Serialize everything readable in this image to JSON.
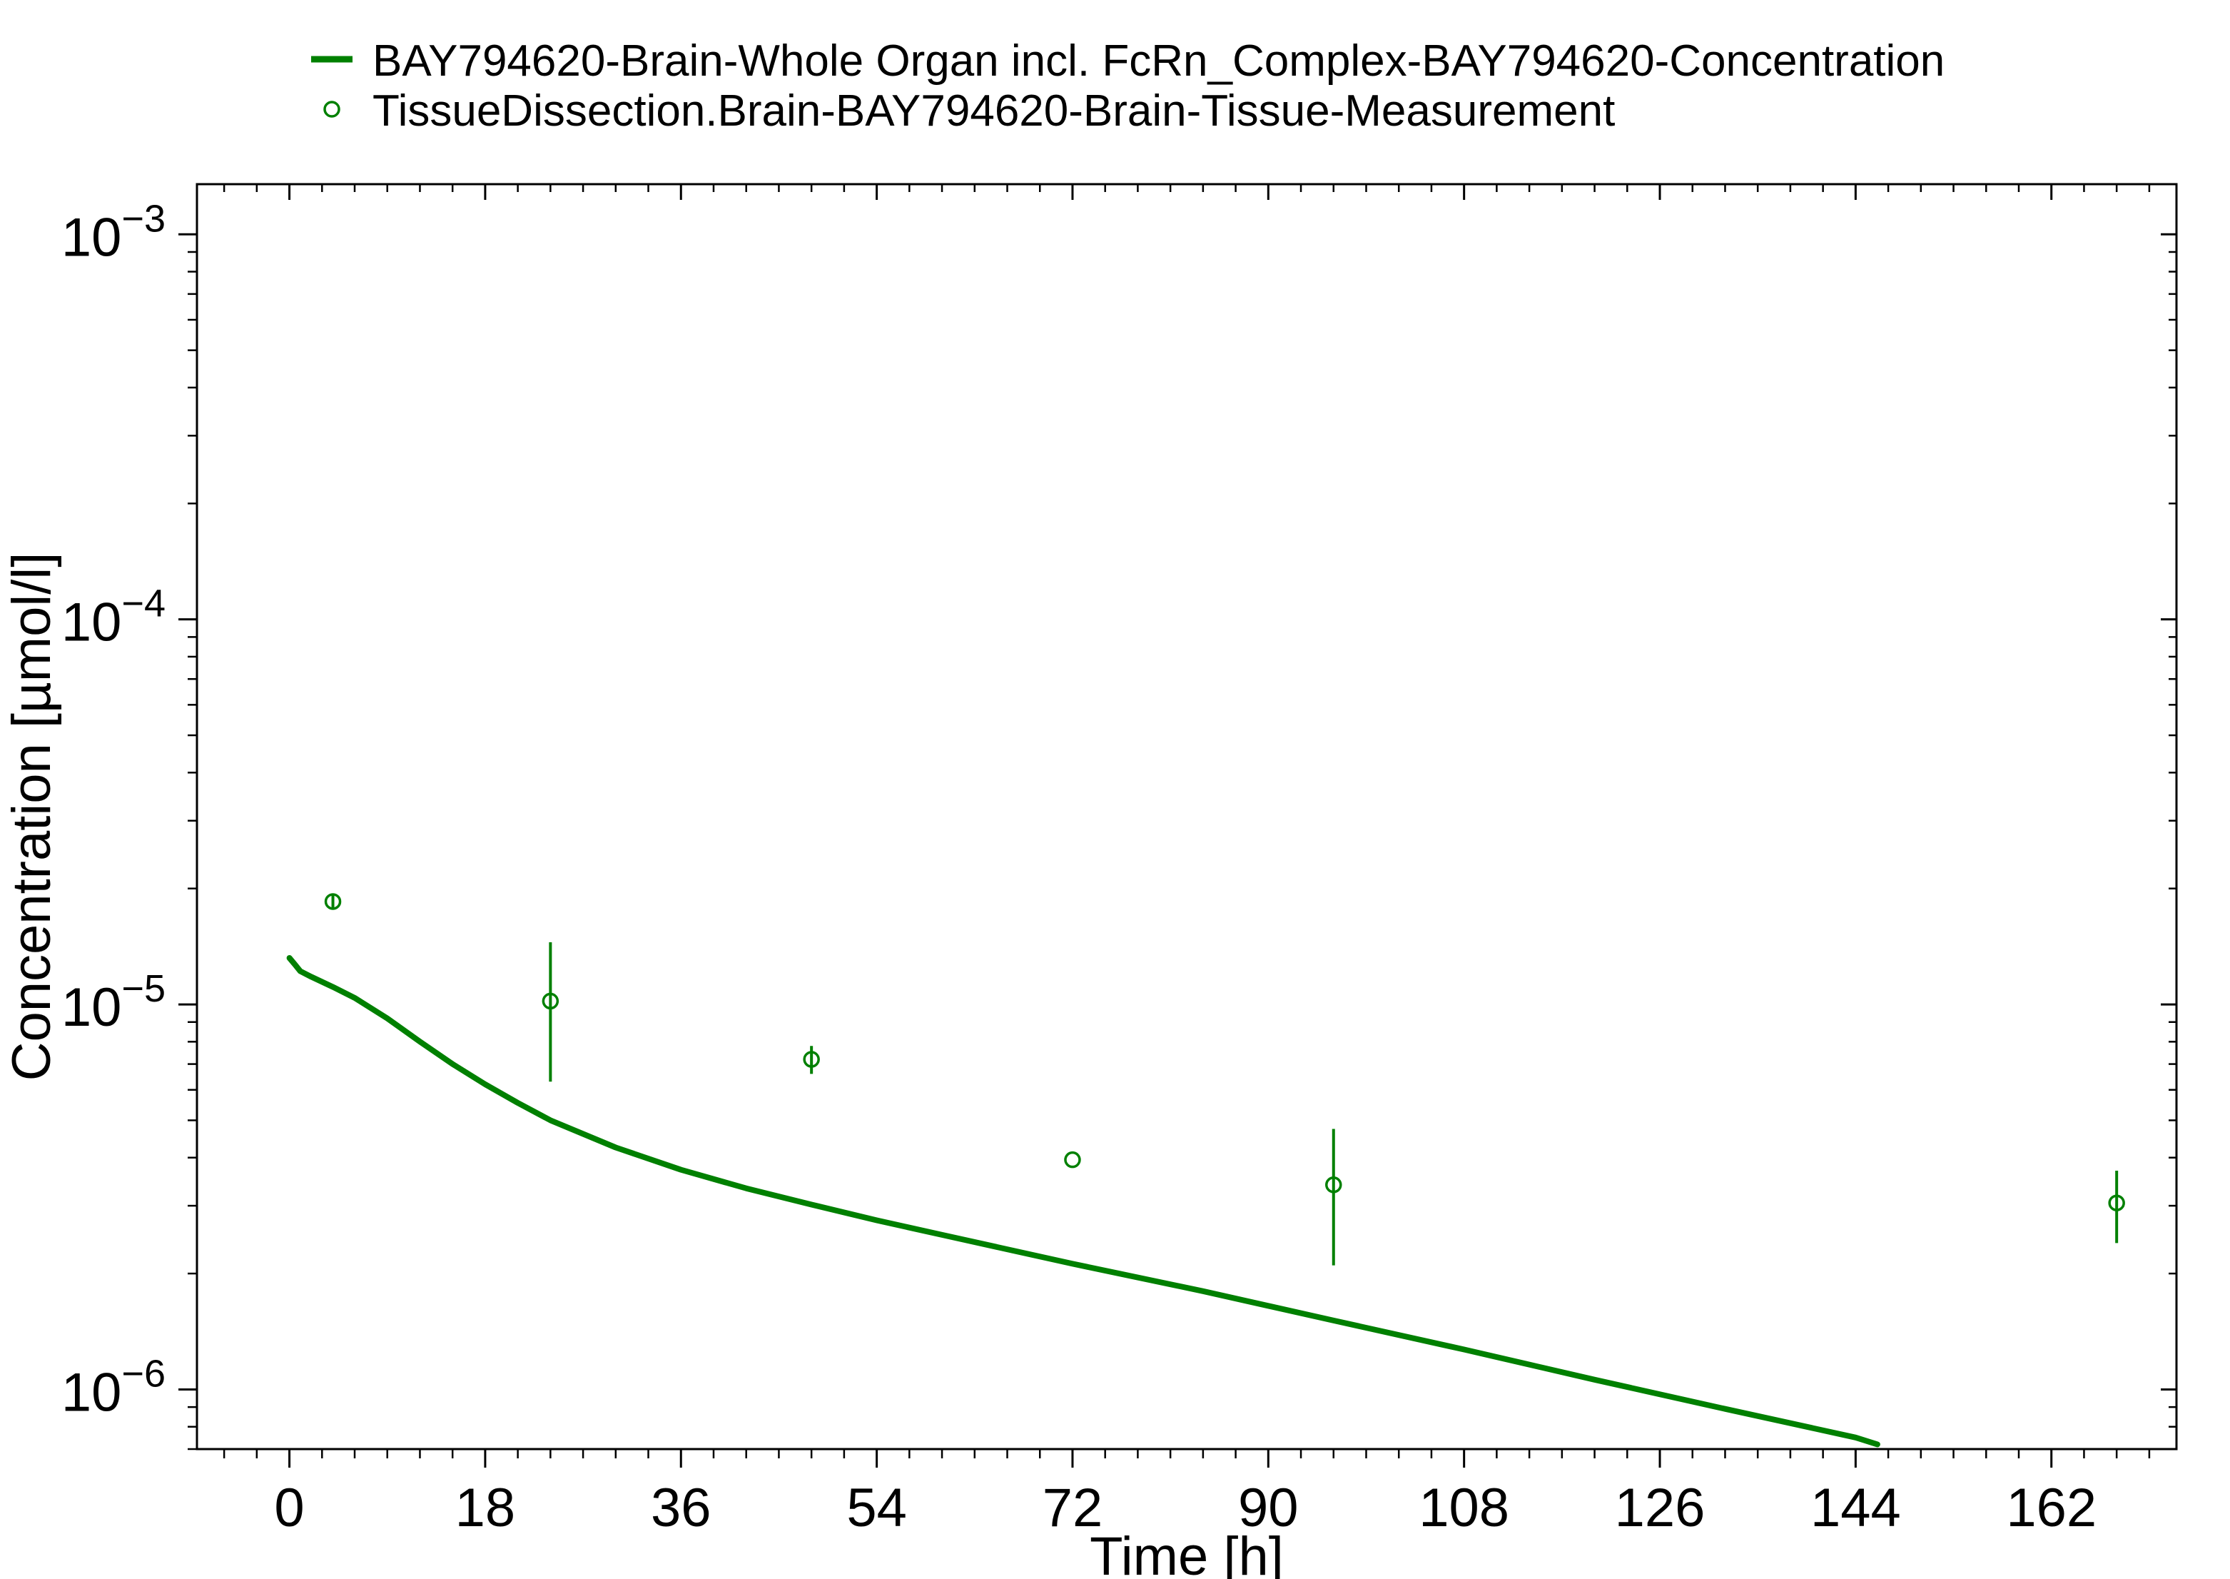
{
  "chart_data": {
    "type": "line",
    "xlabel": "Time [h]",
    "ylabel": "Concentration [µmol/l]",
    "x_ticks": [
      0,
      18,
      36,
      54,
      72,
      90,
      108,
      126,
      144,
      162
    ],
    "xlim": [
      -8.5,
      173.5
    ],
    "ylim": [
      7e-07,
      0.00135
    ],
    "y_scale": "log",
    "y_ticks": [
      {
        "base": "10",
        "exponent": "−6",
        "value": 1e-06
      },
      {
        "base": "10",
        "exponent": "−5",
        "value": 1e-05
      },
      {
        "base": "10",
        "exponent": "−4",
        "value": 0.0001
      },
      {
        "base": "10",
        "exponent": "−3",
        "value": 0.001
      }
    ],
    "grid": false,
    "legend_position": "top",
    "colors": {
      "series": "#008000",
      "axis": "#000000"
    },
    "series": [
      {
        "name": "BAY794620-Brain-Whole Organ incl. FcRn_Complex-BAY794620-Concentration",
        "kind": "line",
        "x": [
          0,
          0.5,
          1,
          2,
          4,
          6,
          9,
          12,
          15,
          18,
          21,
          24,
          30,
          36,
          42,
          48,
          54,
          60,
          72,
          84,
          96,
          108,
          120,
          132,
          144,
          146
        ],
        "y": [
          1.32e-05,
          1.27e-05,
          1.22e-05,
          1.18e-05,
          1.11e-05,
          1.04e-05,
          9.2e-06,
          8e-06,
          7e-06,
          6.2e-06,
          5.55e-06,
          5e-06,
          4.25e-06,
          3.72e-06,
          3.33e-06,
          3.02e-06,
          2.75e-06,
          2.52e-06,
          2.12e-06,
          1.8e-06,
          1.51e-06,
          1.27e-06,
          1.06e-06,
          8.9e-07,
          7.5e-07,
          7.2e-07
        ]
      },
      {
        "name": "TissueDissection.Brain-BAY794620-Brain-Tissue-Measurement",
        "kind": "scatter",
        "marker": "open-circle",
        "x": [
          4,
          24,
          48,
          72,
          96,
          168
        ],
        "y": [
          1.85e-05,
          1.02e-05,
          7.2e-06,
          3.95e-06,
          3.4e-06,
          3.05e-06
        ],
        "err_low": [
          1.78e-05,
          6.3e-06,
          6.6e-06,
          3.95e-06,
          2.1e-06,
          2.4e-06
        ],
        "err_high": [
          1.93e-05,
          1.45e-05,
          7.8e-06,
          3.95e-06,
          4.75e-06,
          3.7e-06
        ]
      }
    ]
  }
}
